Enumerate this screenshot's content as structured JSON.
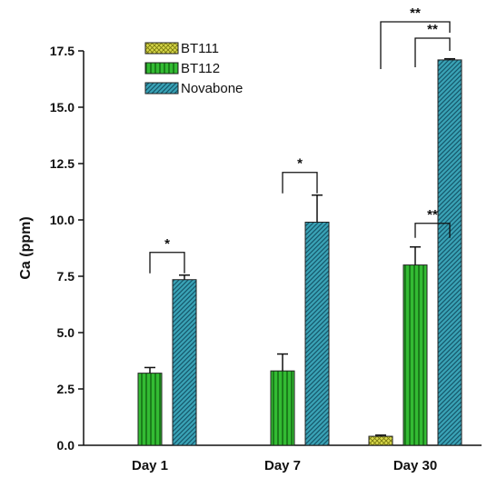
{
  "chart_data": {
    "type": "bar",
    "title": "",
    "xlabel": "",
    "ylabel": "Ca (ppm)",
    "ylim": [
      0,
      17.5
    ],
    "yticks": [
      "0.0",
      "2.5",
      "5.0",
      "7.5",
      "10.0",
      "12.5",
      "15.0",
      "17.5"
    ],
    "categories": [
      "Day 1",
      "Day 7",
      "Day 30"
    ],
    "series": [
      {
        "name": "BT111",
        "color": "#cccc33",
        "pattern": "crosshatch",
        "values": [
          0,
          0,
          0.4
        ],
        "errors": [
          0,
          0,
          0.05
        ]
      },
      {
        "name": "BT112",
        "color": "#22aa22",
        "pattern": "vertical-lines",
        "values": [
          3.2,
          3.3,
          8.0
        ],
        "errors": [
          0.25,
          0.75,
          0.8
        ]
      },
      {
        "name": "Novabone",
        "color": "#3399aa",
        "pattern": "diagonal-lines",
        "values": [
          7.35,
          9.9,
          17.1
        ],
        "errors": [
          0.2,
          1.2,
          0.05
        ]
      }
    ],
    "legend_position": "top-left",
    "grid": false,
    "significance": [
      {
        "category": "Day 1",
        "from": "BT112",
        "to": "Novabone",
        "label": "*"
      },
      {
        "category": "Day 7",
        "from": "BT112",
        "to": "Novabone",
        "label": "*"
      },
      {
        "category": "Day 30",
        "from": "BT112",
        "to": "Novabone",
        "label": "**"
      },
      {
        "category": "Day 30",
        "from": "BT111",
        "to": "Novabone",
        "label": "**"
      },
      {
        "category": "Day 30",
        "from": "BT112",
        "to": "Novabone",
        "label": "**",
        "level": "upper"
      }
    ]
  }
}
